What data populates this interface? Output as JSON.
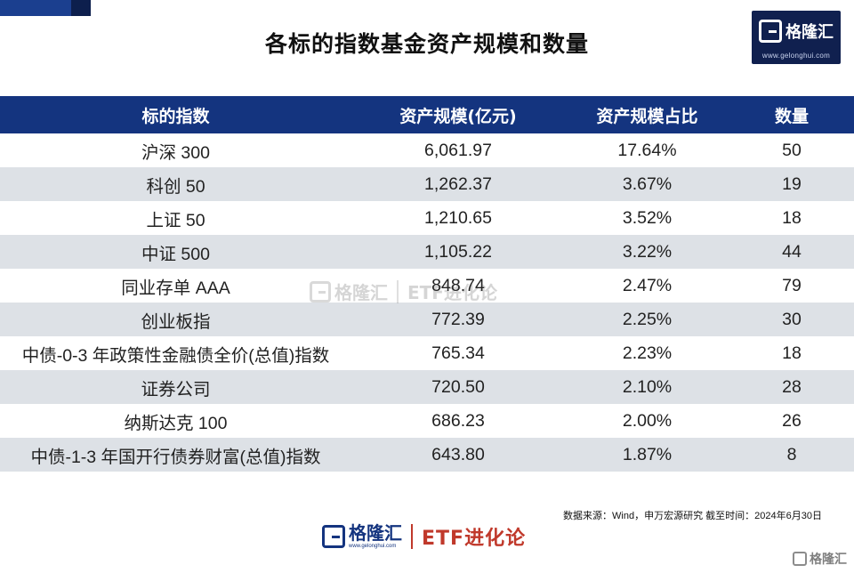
{
  "title": "各标的指数基金资产规模和数量",
  "logo": {
    "name": "格隆汇",
    "url": "www.gelonghui.com"
  },
  "watermark": {
    "name": "格隆汇",
    "etf": "ETF进化论"
  },
  "source": "数据来源：Wind，申万宏源研究  截至时间：2024年6月30日",
  "footer": {
    "name": "格隆汇",
    "url": "www.gelonghui.com",
    "etf": "ETF进化论"
  },
  "corner_watermark": "格隆汇",
  "colors": {
    "header": "#14347f",
    "alt_row": "#dde1e6",
    "etf_red": "#c0392b"
  },
  "chart_data": {
    "type": "table",
    "title": "各标的指数基金资产规模和数量",
    "columns": [
      "标的指数",
      "资产规模(亿元)",
      "资产规模占比",
      "数量"
    ],
    "rows": [
      [
        "沪深 300",
        "6,061.97",
        "17.64%",
        "50"
      ],
      [
        "科创 50",
        "1,262.37",
        "3.67%",
        "19"
      ],
      [
        "上证 50",
        "1,210.65",
        "3.52%",
        "18"
      ],
      [
        "中证 500",
        "1,105.22",
        "3.22%",
        "44"
      ],
      [
        "同业存单 AAA",
        "848.74",
        "2.47%",
        "79"
      ],
      [
        "创业板指",
        "772.39",
        "2.25%",
        "30"
      ],
      [
        "中债-0-3 年政策性金融债全价(总值)指数",
        "765.34",
        "2.23%",
        "18"
      ],
      [
        "证券公司",
        "720.50",
        "2.10%",
        "28"
      ],
      [
        "纳斯达克 100",
        "686.23",
        "2.00%",
        "26"
      ],
      [
        "中债-1-3 年国开行债券财富(总值)指数",
        "643.80",
        "1.87%",
        "8"
      ]
    ]
  }
}
